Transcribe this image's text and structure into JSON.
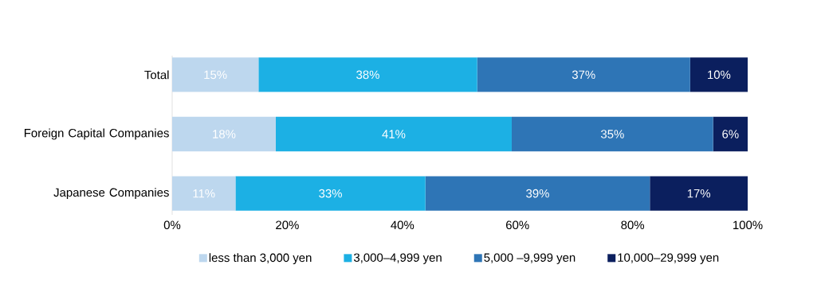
{
  "chart_data": {
    "type": "bar",
    "orientation": "horizontal",
    "stacked": true,
    "categories": [
      "Total",
      "Foreign Capital Companies",
      "Japanese Companies"
    ],
    "series": [
      {
        "name": "less than 3,000 yen",
        "color": "#bdd7ee",
        "values": [
          15,
          18,
          11
        ],
        "value_labels": [
          "15%",
          "18%",
          "11%"
        ]
      },
      {
        "name": "3,000–4,999 yen",
        "color": "#1cb0e4",
        "values": [
          38,
          41,
          33
        ],
        "value_labels": [
          "38%",
          "41%",
          "33%"
        ]
      },
      {
        "name": "5,000 –9,999 yen",
        "color": "#2e75b6",
        "values": [
          37,
          35,
          39
        ],
        "value_labels": [
          "37%",
          "35%",
          "39%"
        ]
      },
      {
        "name": "10,000–29,999 yen",
        "color": "#0b1f5e",
        "values": [
          10,
          6,
          17
        ],
        "value_labels": [
          "10%",
          "6%",
          "17%"
        ]
      }
    ],
    "xlim": [
      0,
      100
    ],
    "xticks": [
      {
        "value": 0,
        "label": "0%"
      },
      {
        "value": 20,
        "label": "20%"
      },
      {
        "value": 40,
        "label": "40%"
      },
      {
        "value": 60,
        "label": "60%"
      },
      {
        "value": 80,
        "label": "80%"
      },
      {
        "value": 100,
        "label": "100%"
      }
    ],
    "legend": "bottom"
  }
}
